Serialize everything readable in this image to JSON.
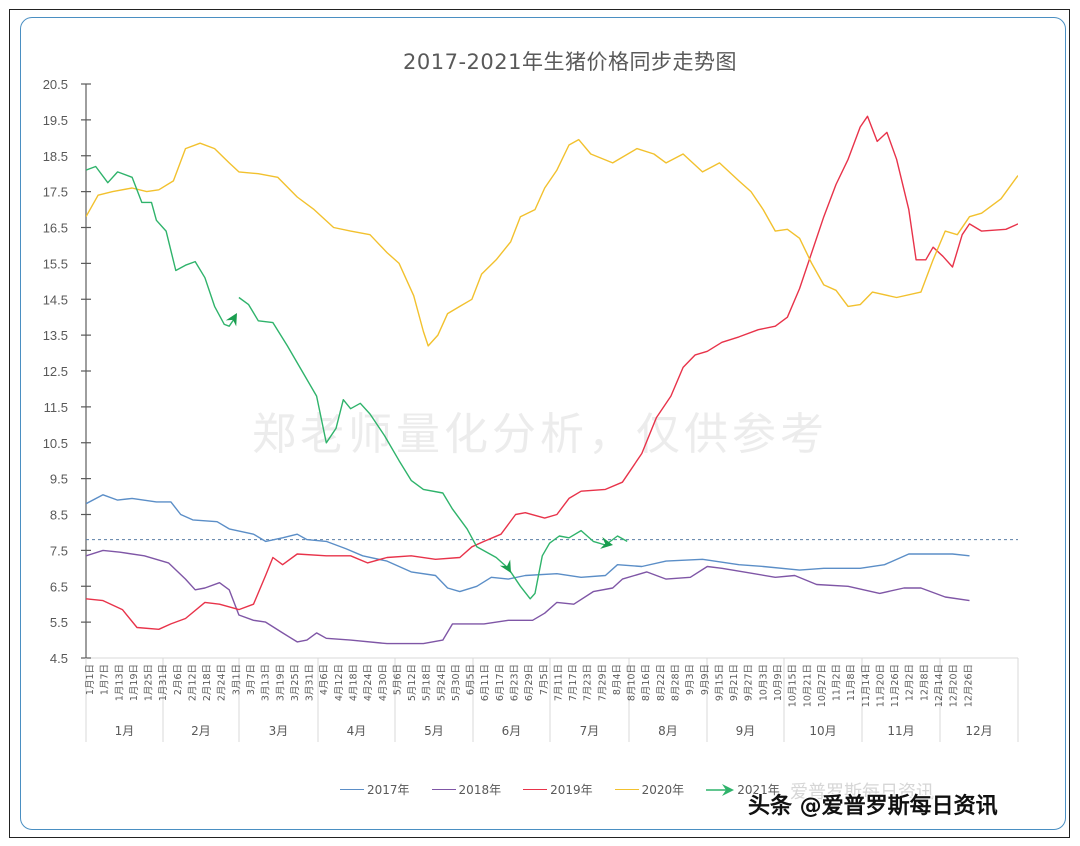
{
  "chart_data": {
    "type": "line",
    "title": "2017-2021年生猪价格同步走势图",
    "xlabel": "",
    "ylabel": "",
    "ylim": [
      4.5,
      20.5
    ],
    "y_ticks": [
      "20.5",
      "19.5",
      "18.5",
      "17.5",
      "16.5",
      "15.5",
      "14.5",
      "13.5",
      "12.5",
      "11.5",
      "10.5",
      "9.5",
      "8.5",
      "7.5",
      "6.5",
      "5.5",
      "4.5"
    ],
    "x_day_ticks": [
      "1月1日",
      "1月7日",
      "1月13日",
      "1月19日",
      "1月25日",
      "1月31日",
      "2月6日",
      "2月12日",
      "2月18日",
      "2月24日",
      "3月1日",
      "3月7日",
      "3月13日",
      "3月19日",
      "3月25日",
      "3月31日",
      "4月6日",
      "4月12日",
      "4月18日",
      "4月24日",
      "4月30日",
      "5月6日",
      "5月12日",
      "5月18日",
      "5月24日",
      "5月30日",
      "6月5日",
      "6月11日",
      "6月17日",
      "6月23日",
      "6月29日",
      "7月5日",
      "7月11日",
      "7月17日",
      "7月23日",
      "7月29日",
      "8月4日",
      "8月10日",
      "8月16日",
      "8月22日",
      "8月28日",
      "9月3日",
      "9月9日",
      "9月15日",
      "9月21日",
      "9月27日",
      "10月3日",
      "10月9日",
      "10月15日",
      "10月21日",
      "10月27日",
      "11月2日",
      "11月8日",
      "11月14日",
      "11月20日",
      "11月26日",
      "12月2日",
      "12月8日",
      "12月14日",
      "12月20日",
      "12月26日"
    ],
    "x_month_labels": [
      "1月",
      "2月",
      "3月",
      "4月",
      "5月",
      "6月",
      "7月",
      "8月",
      "9月",
      "10月",
      "11月",
      "12月"
    ],
    "grid": false,
    "legend_position": "bottom",
    "reference_line": {
      "value": 7.8,
      "style": "dashed",
      "color": "#5b7fa6"
    },
    "x_unit": "day_of_year",
    "series": [
      {
        "name": "2017年",
        "color": "#5b8ec7",
        "points": [
          [
            1,
            8.8
          ],
          [
            8,
            9.05
          ],
          [
            14,
            8.9
          ],
          [
            20,
            8.95
          ],
          [
            30,
            8.85
          ],
          [
            36,
            8.85
          ],
          [
            40,
            8.5
          ],
          [
            45,
            8.35
          ],
          [
            55,
            8.3
          ],
          [
            60,
            8.1
          ],
          [
            70,
            7.95
          ],
          [
            75,
            7.75
          ],
          [
            82,
            7.85
          ],
          [
            88,
            7.95
          ],
          [
            92,
            7.8
          ],
          [
            100,
            7.75
          ],
          [
            108,
            7.55
          ],
          [
            115,
            7.35
          ],
          [
            125,
            7.2
          ],
          [
            135,
            6.9
          ],
          [
            145,
            6.8
          ],
          [
            150,
            6.45
          ],
          [
            155,
            6.35
          ],
          [
            162,
            6.5
          ],
          [
            168,
            6.75
          ],
          [
            175,
            6.7
          ],
          [
            182,
            6.8
          ],
          [
            195,
            6.85
          ],
          [
            205,
            6.75
          ],
          [
            215,
            6.8
          ],
          [
            220,
            7.1
          ],
          [
            230,
            7.05
          ],
          [
            240,
            7.2
          ],
          [
            255,
            7.25
          ],
          [
            270,
            7.1
          ],
          [
            280,
            7.05
          ],
          [
            295,
            6.95
          ],
          [
            305,
            7.0
          ],
          [
            320,
            7.0
          ],
          [
            330,
            7.1
          ],
          [
            340,
            7.4
          ],
          [
            350,
            7.4
          ],
          [
            358,
            7.4
          ],
          [
            365,
            7.35
          ]
        ]
      },
      {
        "name": "2018年",
        "color": "#7f56a6",
        "points": [
          [
            1,
            7.35
          ],
          [
            8,
            7.5
          ],
          [
            15,
            7.45
          ],
          [
            25,
            7.35
          ],
          [
            35,
            7.15
          ],
          [
            42,
            6.7
          ],
          [
            46,
            6.4
          ],
          [
            50,
            6.45
          ],
          [
            56,
            6.6
          ],
          [
            60,
            6.4
          ],
          [
            64,
            5.7
          ],
          [
            70,
            5.55
          ],
          [
            75,
            5.5
          ],
          [
            82,
            5.2
          ],
          [
            88,
            4.95
          ],
          [
            92,
            5.0
          ],
          [
            96,
            5.2
          ],
          [
            100,
            5.05
          ],
          [
            110,
            5.0
          ],
          [
            125,
            4.9
          ],
          [
            140,
            4.9
          ],
          [
            148,
            5.0
          ],
          [
            152,
            5.45
          ],
          [
            158,
            5.45
          ],
          [
            165,
            5.45
          ],
          [
            175,
            5.55
          ],
          [
            185,
            5.55
          ],
          [
            190,
            5.75
          ],
          [
            195,
            6.05
          ],
          [
            202,
            6.0
          ],
          [
            210,
            6.35
          ],
          [
            218,
            6.45
          ],
          [
            222,
            6.7
          ],
          [
            232,
            6.9
          ],
          [
            240,
            6.7
          ],
          [
            250,
            6.75
          ],
          [
            257,
            7.05
          ],
          [
            263,
            7.0
          ],
          [
            272,
            6.9
          ],
          [
            285,
            6.75
          ],
          [
            293,
            6.8
          ],
          [
            302,
            6.55
          ],
          [
            315,
            6.5
          ],
          [
            328,
            6.3
          ],
          [
            338,
            6.45
          ],
          [
            345,
            6.45
          ],
          [
            355,
            6.2
          ],
          [
            365,
            6.1
          ]
        ]
      },
      {
        "name": "2019年",
        "color": "#e8334a",
        "points": [
          [
            1,
            6.15
          ],
          [
            8,
            6.1
          ],
          [
            16,
            5.85
          ],
          [
            22,
            5.35
          ],
          [
            31,
            5.3
          ],
          [
            36,
            5.45
          ],
          [
            42,
            5.6
          ],
          [
            50,
            6.05
          ],
          [
            56,
            6.0
          ],
          [
            64,
            5.85
          ],
          [
            70,
            6.0
          ],
          [
            75,
            6.8
          ],
          [
            78,
            7.3
          ],
          [
            82,
            7.1
          ],
          [
            88,
            7.4
          ],
          [
            100,
            7.35
          ],
          [
            110,
            7.35
          ],
          [
            117,
            7.15
          ],
          [
            125,
            7.3
          ],
          [
            135,
            7.35
          ],
          [
            145,
            7.25
          ],
          [
            155,
            7.3
          ],
          [
            160,
            7.6
          ],
          [
            165,
            7.75
          ],
          [
            172,
            7.95
          ],
          [
            178,
            8.5
          ],
          [
            182,
            8.55
          ],
          [
            190,
            8.4
          ],
          [
            195,
            8.5
          ],
          [
            200,
            8.95
          ],
          [
            205,
            9.15
          ],
          [
            215,
            9.2
          ],
          [
            222,
            9.4
          ],
          [
            230,
            10.2
          ],
          [
            236,
            11.2
          ],
          [
            242,
            11.8
          ],
          [
            247,
            12.6
          ],
          [
            252,
            12.95
          ],
          [
            257,
            13.05
          ],
          [
            263,
            13.3
          ],
          [
            270,
            13.45
          ],
          [
            278,
            13.65
          ],
          [
            285,
            13.75
          ],
          [
            290,
            14.0
          ],
          [
            295,
            14.8
          ],
          [
            300,
            15.8
          ],
          [
            305,
            16.8
          ],
          [
            310,
            17.7
          ],
          [
            315,
            18.4
          ],
          [
            320,
            19.3
          ],
          [
            323,
            19.6
          ],
          [
            327,
            18.9
          ],
          [
            331,
            19.15
          ],
          [
            335,
            18.4
          ],
          [
            340,
            17.0
          ],
          [
            343,
            15.6
          ],
          [
            347,
            15.6
          ],
          [
            350,
            15.95
          ],
          [
            354,
            15.7
          ],
          [
            358,
            15.4
          ],
          [
            362,
            16.3
          ],
          [
            365,
            16.6
          ],
          [
            370,
            16.4
          ],
          [
            380,
            16.45
          ],
          [
            385,
            16.6
          ]
        ]
      },
      {
        "name": "2020年",
        "color": "#f2c12e",
        "points": [
          [
            1,
            16.8
          ],
          [
            6,
            17.4
          ],
          [
            12,
            17.5
          ],
          [
            20,
            17.6
          ],
          [
            26,
            17.5
          ],
          [
            31,
            17.55
          ],
          [
            37,
            17.8
          ],
          [
            42,
            18.7
          ],
          [
            48,
            18.85
          ],
          [
            54,
            18.7
          ],
          [
            60,
            18.3
          ],
          [
            64,
            18.05
          ],
          [
            72,
            18.0
          ],
          [
            80,
            17.9
          ],
          [
            88,
            17.35
          ],
          [
            95,
            17.0
          ],
          [
            103,
            16.5
          ],
          [
            110,
            16.4
          ],
          [
            118,
            16.3
          ],
          [
            125,
            15.8
          ],
          [
            130,
            15.5
          ],
          [
            136,
            14.6
          ],
          [
            140,
            13.6
          ],
          [
            142,
            13.2
          ],
          [
            146,
            13.5
          ],
          [
            150,
            14.1
          ],
          [
            155,
            14.3
          ],
          [
            160,
            14.5
          ],
          [
            164,
            15.2
          ],
          [
            170,
            15.6
          ],
          [
            176,
            16.1
          ],
          [
            180,
            16.8
          ],
          [
            186,
            17.0
          ],
          [
            190,
            17.6
          ],
          [
            195,
            18.1
          ],
          [
            200,
            18.8
          ],
          [
            204,
            18.95
          ],
          [
            209,
            18.55
          ],
          [
            218,
            18.3
          ],
          [
            228,
            18.7
          ],
          [
            235,
            18.55
          ],
          [
            240,
            18.3
          ],
          [
            247,
            18.55
          ],
          [
            255,
            18.05
          ],
          [
            262,
            18.3
          ],
          [
            270,
            17.8
          ],
          [
            275,
            17.5
          ],
          [
            280,
            17.0
          ],
          [
            285,
            16.4
          ],
          [
            290,
            16.45
          ],
          [
            295,
            16.2
          ],
          [
            300,
            15.5
          ],
          [
            305,
            14.9
          ],
          [
            310,
            14.75
          ],
          [
            315,
            14.3
          ],
          [
            320,
            14.35
          ],
          [
            325,
            14.7
          ],
          [
            335,
            14.55
          ],
          [
            345,
            14.7
          ],
          [
            350,
            15.6
          ],
          [
            355,
            16.4
          ],
          [
            360,
            16.3
          ],
          [
            365,
            16.8
          ],
          [
            370,
            16.9
          ],
          [
            378,
            17.3
          ],
          [
            385,
            17.95
          ]
        ]
      },
      {
        "name": "2021年",
        "color": "#2fb36b",
        "points": [
          [
            1,
            18.1
          ],
          [
            5,
            18.2
          ],
          [
            10,
            17.75
          ],
          [
            14,
            18.05
          ],
          [
            20,
            17.9
          ],
          [
            24,
            17.2
          ],
          [
            28,
            17.2
          ],
          [
            30,
            16.7
          ],
          [
            34,
            16.4
          ],
          [
            38,
            15.3
          ],
          [
            42,
            15.45
          ],
          [
            46,
            15.55
          ],
          [
            50,
            15.1
          ],
          [
            54,
            14.3
          ],
          [
            58,
            13.8
          ],
          [
            60,
            13.75
          ],
          [
            62,
            13.95
          ]
        ]
      },
      {
        "name": "2021年",
        "color": "#2fb36b",
        "continuation": true,
        "points": [
          [
            64,
            14.55
          ],
          [
            68,
            14.35
          ],
          [
            72,
            13.9
          ],
          [
            78,
            13.85
          ],
          [
            84,
            13.2
          ],
          [
            90,
            12.5
          ],
          [
            96,
            11.8
          ],
          [
            100,
            10.5
          ],
          [
            104,
            10.9
          ],
          [
            107,
            11.7
          ],
          [
            110,
            11.45
          ],
          [
            114,
            11.6
          ],
          [
            118,
            11.3
          ],
          [
            124,
            10.7
          ],
          [
            130,
            10.0
          ],
          [
            135,
            9.45
          ],
          [
            140,
            9.2
          ],
          [
            148,
            9.1
          ],
          [
            152,
            8.65
          ],
          [
            158,
            8.1
          ],
          [
            162,
            7.6
          ],
          [
            170,
            7.3
          ],
          [
            175,
            7.0
          ],
          [
            180,
            6.5
          ],
          [
            184,
            6.15
          ],
          [
            186,
            6.3
          ],
          [
            189,
            7.35
          ],
          [
            192,
            7.7
          ],
          [
            196,
            7.9
          ],
          [
            200,
            7.85
          ],
          [
            205,
            8.05
          ],
          [
            210,
            7.75
          ],
          [
            215,
            7.65
          ],
          [
            220,
            7.9
          ],
          [
            224,
            7.75
          ]
        ]
      }
    ]
  },
  "watermark": "郑老师量化分析，仅供参考",
  "legend": [
    {
      "label": "2017年",
      "color": "#5b8ec7",
      "style": "line"
    },
    {
      "label": "2018年",
      "color": "#7f56a6",
      "style": "line"
    },
    {
      "label": "2019年",
      "color": "#e8334a",
      "style": "line"
    },
    {
      "label": "2020年",
      "color": "#f2c12e",
      "style": "line"
    },
    {
      "label": "2021年",
      "color": "#2fb36b",
      "style": "arrow"
    }
  ],
  "ghost_source": "爱普罗斯每日资讯",
  "badge": "头条 @爱普罗斯每日资讯"
}
